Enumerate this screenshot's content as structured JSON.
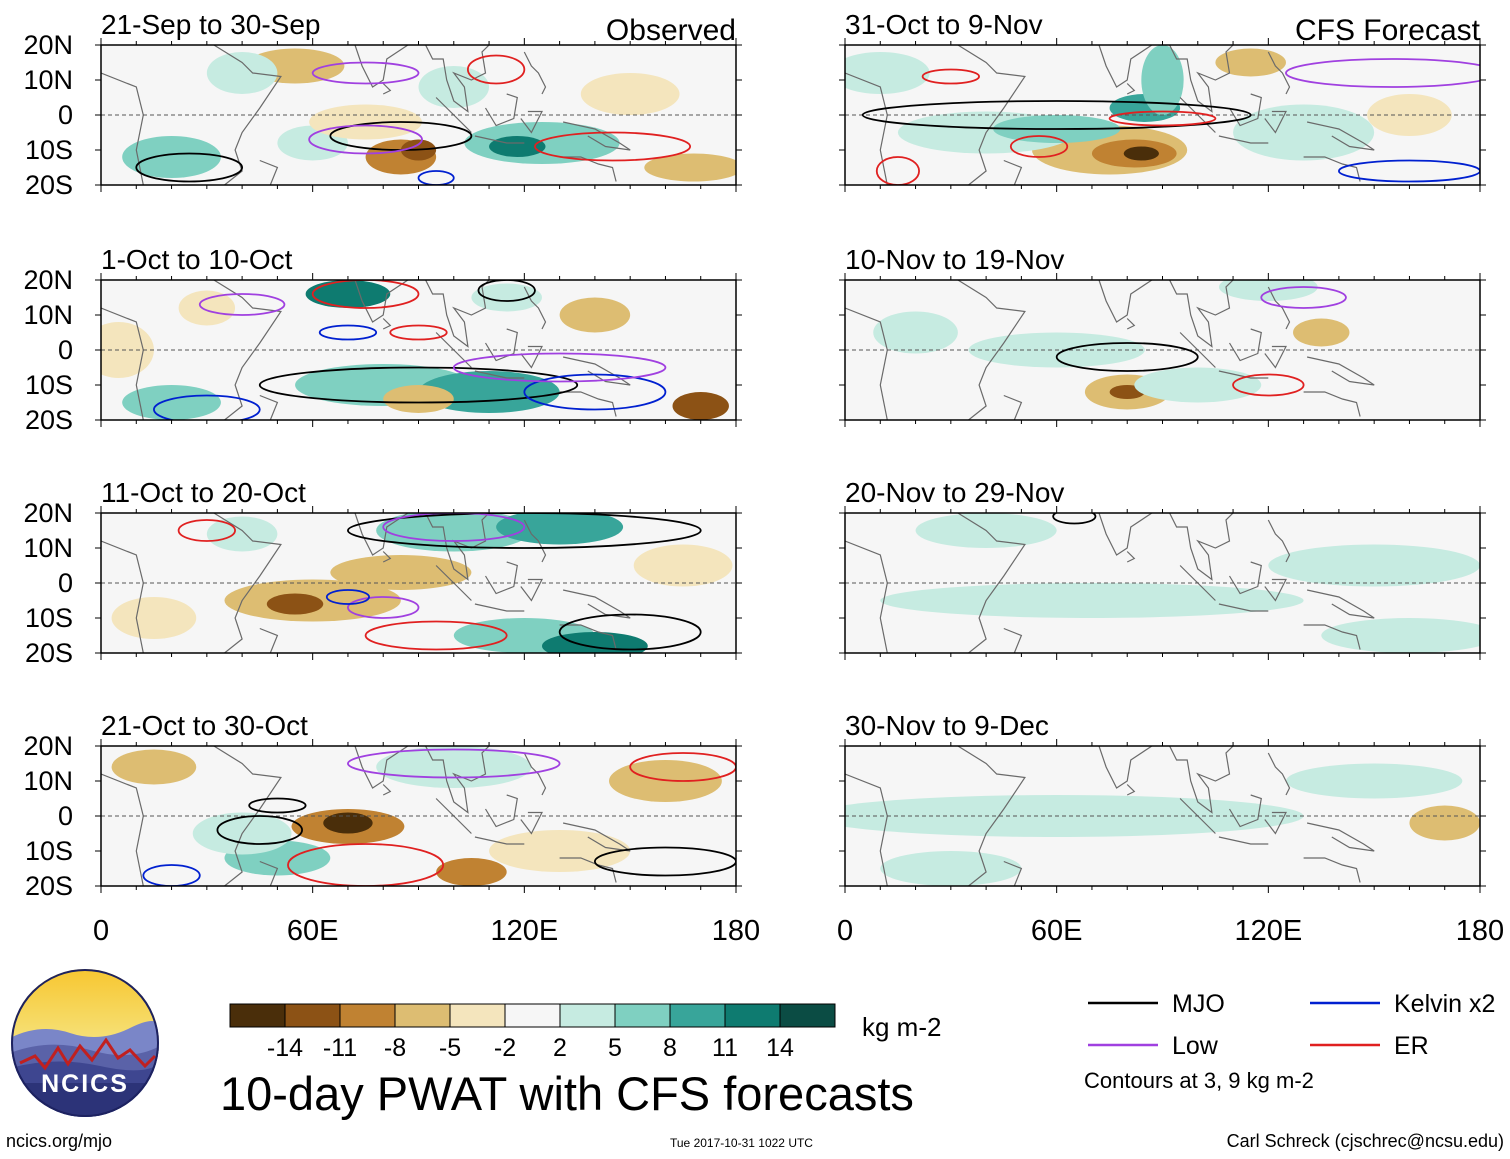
{
  "column_headers": {
    "left": "Observed",
    "right": "CFS Forecast"
  },
  "panels": [
    {
      "period": "21-Sep to 30-Sep",
      "kind": "observed"
    },
    {
      "period": "31-Oct to 9-Nov",
      "kind": "forecast"
    },
    {
      "period": "1-Oct to 10-Oct",
      "kind": "observed"
    },
    {
      "period": "10-Nov to 19-Nov",
      "kind": "forecast"
    },
    {
      "period": "11-Oct to 20-Oct",
      "kind": "observed"
    },
    {
      "period": "20-Nov to 29-Nov",
      "kind": "forecast"
    },
    {
      "period": "21-Oct to 30-Oct",
      "kind": "observed"
    },
    {
      "period": "30-Nov to 9-Dec",
      "kind": "forecast"
    }
  ],
  "axes": {
    "lat_ticks": [
      "20N",
      "10N",
      "0",
      "10S",
      "20S"
    ],
    "lat_values": [
      20,
      10,
      0,
      -10,
      -20
    ],
    "lon_ticks": [
      "0",
      "60E",
      "120E",
      "180"
    ],
    "lon_values": [
      0,
      60,
      120,
      180
    ]
  },
  "colorbar": {
    "colors": [
      "#4a2e0a",
      "#8c5215",
      "#c08232",
      "#ddbd72",
      "#f4e5bd",
      "#f6f6f6",
      "#c6ebe1",
      "#7fd0c1",
      "#38a59a",
      "#0e7b70",
      "#0b4c44"
    ],
    "tick_labels": [
      "-14",
      "-11",
      "-8",
      "-5",
      "-2",
      "2",
      "5",
      "8",
      "11",
      "14"
    ],
    "unit": "kg m-2"
  },
  "legend": {
    "items": [
      {
        "label": "MJO",
        "color": "#000000"
      },
      {
        "label": "Kelvin x2",
        "color": "#0020d0"
      },
      {
        "label": "Low",
        "color": "#a040e0"
      },
      {
        "label": "ER",
        "color": "#e02020"
      }
    ],
    "note": "Contours at 3, 9 kg m-2"
  },
  "title": "10-day PWAT with CFS forecasts",
  "logo_text": "NCICS",
  "footer": {
    "left": "ncics.org/mjo",
    "center": "Tue 2017-10-31 1022 UTC",
    "right": "Carl Schreck (cjschrec@ncsu.edu)"
  }
}
